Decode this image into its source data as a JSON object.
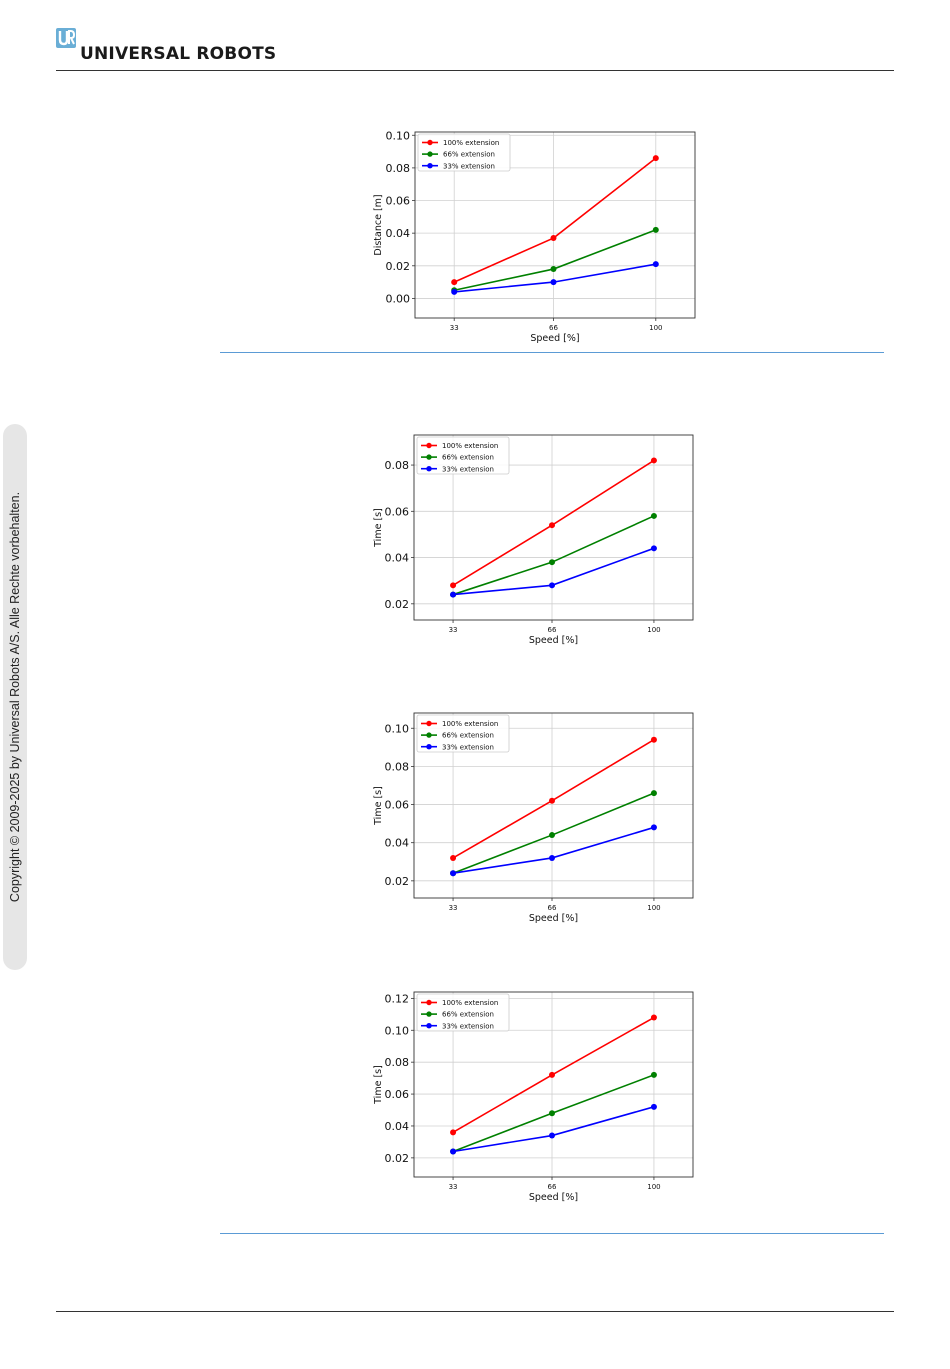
{
  "header": {
    "brand": "UNIVERSAL ROBOTS",
    "logo_icon": "ur-logo-icon",
    "logo_color": "#6aaed6"
  },
  "sidebar": {
    "copyright": "Copyright © 2009-2025 by Universal Robots A/S. Alle Rechte vorbehalten."
  },
  "colors": {
    "series_100": "#ff0000",
    "series_66": "#008000",
    "series_33": "#0000ff",
    "rule": "#5b9bd5"
  },
  "chart_data": [
    {
      "type": "line",
      "xlabel": "Speed [%]",
      "ylabel": "Distance [m]",
      "x": [
        33,
        66,
        100
      ],
      "x_ticks": [
        "33",
        "66",
        "100"
      ],
      "ylim": [
        -0.012,
        0.102
      ],
      "y_ticks": [
        "0.00",
        "0.02",
        "0.04",
        "0.06",
        "0.08",
        "0.10"
      ],
      "y_tick_values": [
        0.0,
        0.02,
        0.04,
        0.06,
        0.08,
        0.1
      ],
      "grid": true,
      "legend_position": "top-left",
      "series": [
        {
          "name": "100% extension",
          "color": "#ff0000",
          "values": [
            0.01,
            0.037,
            0.086
          ]
        },
        {
          "name": "66% extension",
          "color": "#008000",
          "values": [
            0.005,
            0.018,
            0.042
          ]
        },
        {
          "name": "33% extension",
          "color": "#0000ff",
          "values": [
            0.004,
            0.01,
            0.021
          ]
        }
      ]
    },
    {
      "type": "line",
      "xlabel": "Speed [%]",
      "ylabel": "Time [s]",
      "x": [
        33,
        66,
        100
      ],
      "x_ticks": [
        "33",
        "66",
        "100"
      ],
      "ylim": [
        0.013,
        0.093
      ],
      "y_ticks": [
        "0.02",
        "0.04",
        "0.06",
        "0.08"
      ],
      "y_tick_values": [
        0.02,
        0.04,
        0.06,
        0.08
      ],
      "grid": true,
      "legend_position": "top-left",
      "series": [
        {
          "name": "100% extension",
          "color": "#ff0000",
          "values": [
            0.028,
            0.054,
            0.082
          ]
        },
        {
          "name": "66% extension",
          "color": "#008000",
          "values": [
            0.024,
            0.038,
            0.058
          ]
        },
        {
          "name": "33% extension",
          "color": "#0000ff",
          "values": [
            0.024,
            0.028,
            0.044
          ]
        }
      ]
    },
    {
      "type": "line",
      "xlabel": "Speed [%]",
      "ylabel": "Time [s]",
      "x": [
        33,
        66,
        100
      ],
      "x_ticks": [
        "33",
        "66",
        "100"
      ],
      "ylim": [
        0.011,
        0.108
      ],
      "y_ticks": [
        "0.02",
        "0.04",
        "0.06",
        "0.08",
        "0.10"
      ],
      "y_tick_values": [
        0.02,
        0.04,
        0.06,
        0.08,
        0.1
      ],
      "grid": true,
      "legend_position": "top-left",
      "series": [
        {
          "name": "100% extension",
          "color": "#ff0000",
          "values": [
            0.032,
            0.062,
            0.094
          ]
        },
        {
          "name": "66% extension",
          "color": "#008000",
          "values": [
            0.024,
            0.044,
            0.066
          ]
        },
        {
          "name": "33% extension",
          "color": "#0000ff",
          "values": [
            0.024,
            0.032,
            0.048
          ]
        }
      ]
    },
    {
      "type": "line",
      "xlabel": "Speed [%]",
      "ylabel": "Time [s]",
      "x": [
        33,
        66,
        100
      ],
      "x_ticks": [
        "33",
        "66",
        "100"
      ],
      "ylim": [
        0.008,
        0.124
      ],
      "y_ticks": [
        "0.02",
        "0.04",
        "0.06",
        "0.08",
        "0.10",
        "0.12"
      ],
      "y_tick_values": [
        0.02,
        0.04,
        0.06,
        0.08,
        0.1,
        0.12
      ],
      "grid": true,
      "legend_position": "top-left",
      "series": [
        {
          "name": "100% extension",
          "color": "#ff0000",
          "values": [
            0.036,
            0.072,
            0.108
          ]
        },
        {
          "name": "66% extension",
          "color": "#008000",
          "values": [
            0.024,
            0.048,
            0.072
          ]
        },
        {
          "name": "33% extension",
          "color": "#0000ff",
          "values": [
            0.024,
            0.034,
            0.052
          ]
        }
      ]
    }
  ]
}
